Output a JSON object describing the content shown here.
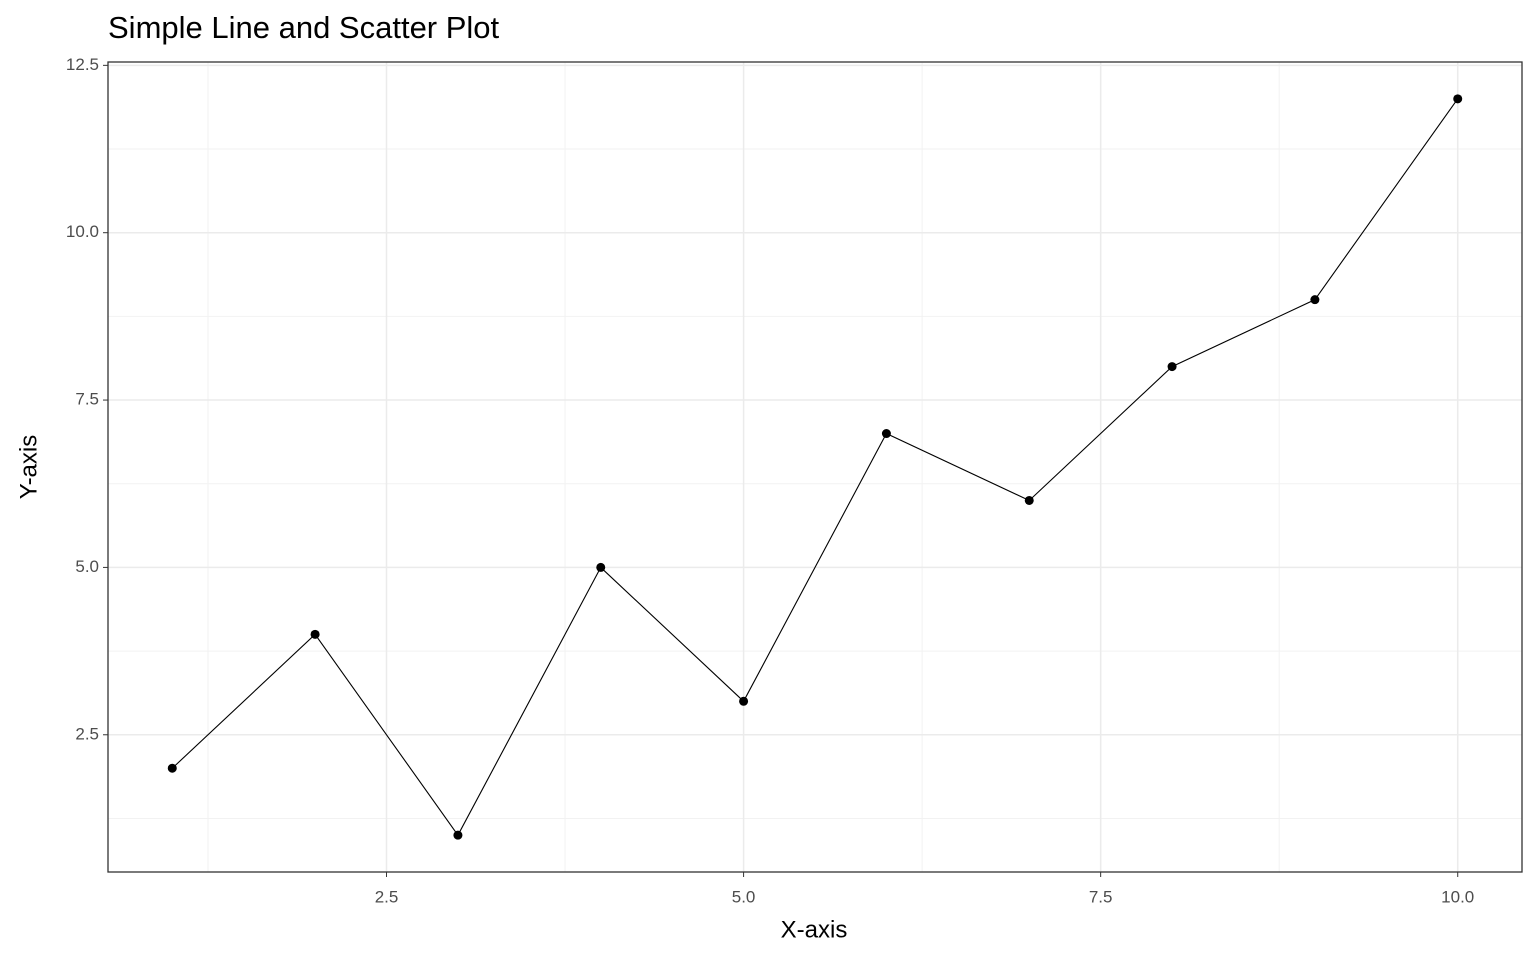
{
  "chart_data": {
    "type": "line_scatter",
    "title": "Simple Line and Scatter Plot",
    "x_label": "X-axis",
    "y_label": "Y-axis",
    "x": [
      1,
      2,
      3,
      4,
      5,
      6,
      7,
      8,
      9,
      10
    ],
    "series": [
      {
        "color": "#000000",
        "values": [
          2,
          4,
          1,
          5,
          3,
          7,
          6,
          8,
          9,
          12
        ]
      }
    ],
    "xlim": [
      0.55,
      10.45
    ],
    "ylim": [
      0.45,
      12.55
    ],
    "xticks": [
      2.5,
      {
        "value": 5,
        "label": "5.0"
      },
      7.5,
      {
        "value": 10,
        "label": "10.0"
      }
    ],
    "yticks": [
      2.5,
      {
        "value": 5,
        "label": "5.0"
      },
      7.5,
      {
        "value": 10,
        "label": "10.0"
      },
      12.5
    ],
    "grid": true
  }
}
